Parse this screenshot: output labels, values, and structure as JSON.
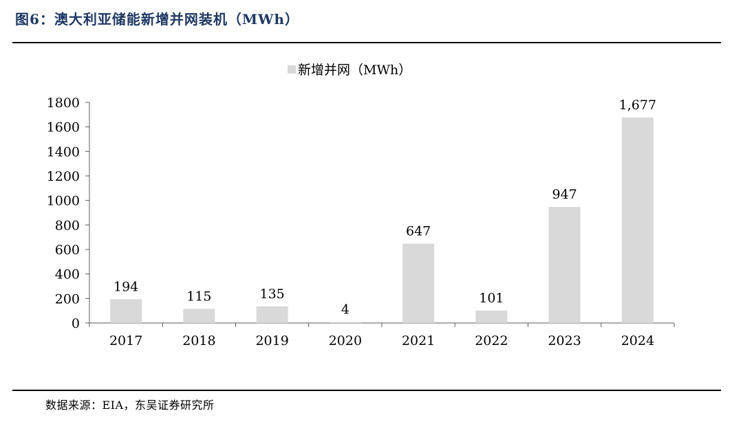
{
  "figure": {
    "title": "图6：澳大利亚储能新增并网装机（MWh）",
    "source": "数据来源：EIA，东吴证券研究所"
  },
  "colors": {
    "bar": "#d9d9d9",
    "axis": "#595959",
    "title": "#1f3864"
  },
  "chart_data": {
    "type": "bar",
    "categories": [
      "2017",
      "2018",
      "2019",
      "2020",
      "2021",
      "2022",
      "2023",
      "2024"
    ],
    "series": [
      {
        "name": "新增并网（MWh）",
        "values": [
          194,
          115,
          135,
          4,
          647,
          101,
          947,
          1677
        ],
        "labels": [
          "194",
          "115",
          "135",
          "4",
          "647",
          "101",
          "947",
          "1,677"
        ]
      }
    ],
    "ylim": [
      0,
      1800
    ],
    "yticks": [
      0,
      200,
      400,
      600,
      800,
      1000,
      1200,
      1400,
      1600,
      1800
    ],
    "grid": false,
    "legend": "top-center"
  }
}
